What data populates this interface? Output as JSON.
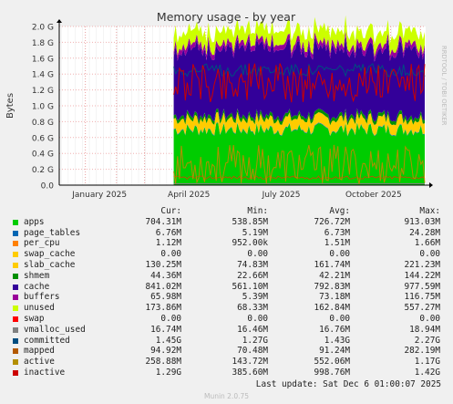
{
  "chart_data": {
    "type": "area",
    "title": "Memory usage - by year",
    "ylabel": "Bytes",
    "side_label": "RRDTOOL / TOBI OETIKER",
    "y_ticks": [
      "0.0",
      "0.2 G",
      "0.4 G",
      "0.6 G",
      "0.8 G",
      "1.0 G",
      "1.2 G",
      "1.4 G",
      "1.6 G",
      "1.8 G",
      "2.0 G"
    ],
    "y_values": [
      0,
      0.2,
      0.4,
      0.6,
      0.8,
      1.0,
      1.2,
      1.4,
      1.6,
      1.8,
      2.0
    ],
    "ylim": [
      0,
      2.0
    ],
    "x_ticks": [
      "January 2025",
      "April 2025",
      "July 2025",
      "October 2025"
    ],
    "x_range": [
      "2024-12-06",
      "2025-12-06"
    ],
    "data_start": "2025-03-30",
    "stack_levels_G": [
      0.7,
      0.007,
      0.001,
      0,
      0.13,
      0.044,
      0.84,
      0.066,
      0.17
    ],
    "lines_G": {
      "vmalloc_used": 0.017,
      "committed": 1.45,
      "mapped": 0.095,
      "active": 0.26,
      "inactive": 1.29
    },
    "grid": true
  },
  "legend": {
    "headers": [
      "Cur:",
      "Min:",
      "Avg:",
      "Max:"
    ],
    "rows": [
      {
        "name": "apps",
        "color": "#00cc00",
        "cur": "704.31M",
        "min": "538.85M",
        "avg": "726.72M",
        "max": "913.03M"
      },
      {
        "name": "page_tables",
        "color": "#0066b3",
        "cur": "6.76M",
        "min": "5.19M",
        "avg": "6.73M",
        "max": "24.28M"
      },
      {
        "name": "per_cpu",
        "color": "#ff8000",
        "cur": "1.12M",
        "min": "952.00k",
        "avg": "1.51M",
        "max": "1.66M"
      },
      {
        "name": "swap_cache",
        "color": "#ffcc00",
        "cur": "0.00",
        "min": "0.00",
        "avg": "0.00",
        "max": "0.00"
      },
      {
        "name": "slab_cache",
        "color": "#ffcc00",
        "cur": "130.25M",
        "min": "74.83M",
        "avg": "161.74M",
        "max": "221.23M"
      },
      {
        "name": "shmem",
        "color": "#008f00",
        "cur": "44.36M",
        "min": "22.66M",
        "avg": "42.21M",
        "max": "144.22M"
      },
      {
        "name": "cache",
        "color": "#330099",
        "cur": "841.02M",
        "min": "561.10M",
        "avg": "792.83M",
        "max": "977.59M"
      },
      {
        "name": "buffers",
        "color": "#990099",
        "cur": "65.98M",
        "min": "5.39M",
        "avg": "73.18M",
        "max": "116.75M"
      },
      {
        "name": "unused",
        "color": "#ccff00",
        "cur": "173.86M",
        "min": "68.33M",
        "avg": "162.84M",
        "max": "557.27M"
      },
      {
        "name": "swap",
        "color": "#ff0000",
        "cur": "0.00",
        "min": "0.00",
        "avg": "0.00",
        "max": "0.00"
      },
      {
        "name": "vmalloc_used",
        "color": "#808080",
        "cur": "16.74M",
        "min": "16.46M",
        "avg": "16.76M",
        "max": "18.94M"
      },
      {
        "name": "committed",
        "color": "#004d80",
        "cur": "1.45G",
        "min": "1.27G",
        "avg": "1.43G",
        "max": "2.27G"
      },
      {
        "name": "mapped",
        "color": "#b35900",
        "cur": "94.92M",
        "min": "70.48M",
        "avg": "91.24M",
        "max": "282.19M"
      },
      {
        "name": "active",
        "color": "#b38f00",
        "cur": "258.88M",
        "min": "143.72M",
        "avg": "552.06M",
        "max": "1.17G"
      },
      {
        "name": "inactive",
        "color": "#cc0000",
        "cur": "1.29G",
        "min": "385.60M",
        "avg": "998.76M",
        "max": "1.42G"
      }
    ]
  },
  "last_update": "Last update: Sat Dec  6 01:00:07 2025",
  "footer": "Munin 2.0.75"
}
